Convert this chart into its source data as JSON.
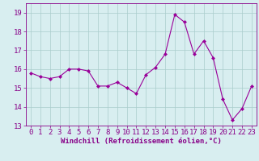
{
  "x": [
    0,
    1,
    2,
    3,
    4,
    5,
    6,
    7,
    8,
    9,
    10,
    11,
    12,
    13,
    14,
    15,
    16,
    17,
    18,
    19,
    20,
    21,
    22,
    23
  ],
  "y": [
    15.8,
    15.6,
    15.5,
    15.6,
    16.0,
    16.0,
    15.9,
    15.1,
    15.1,
    15.3,
    15.0,
    14.7,
    15.7,
    16.1,
    16.8,
    18.9,
    18.5,
    16.8,
    17.5,
    16.6,
    14.4,
    13.3,
    13.9,
    15.1
  ],
  "line_color": "#990099",
  "marker": "D",
  "marker_size": 2,
  "bg_color": "#d8eef0",
  "grid_color": "#aacccc",
  "xlabel": "Windchill (Refroidissement éolien,°C)",
  "xlabel_fontsize": 6.5,
  "tick_fontsize": 6.5,
  "ylim": [
    13,
    19.5
  ],
  "yticks": [
    13,
    14,
    15,
    16,
    17,
    18,
    19
  ],
  "xticks": [
    0,
    1,
    2,
    3,
    4,
    5,
    6,
    7,
    8,
    9,
    10,
    11,
    12,
    13,
    14,
    15,
    16,
    17,
    18,
    19,
    20,
    21,
    22,
    23
  ],
  "linewidth": 0.8,
  "text_color": "#880088",
  "spine_color": "#880088"
}
